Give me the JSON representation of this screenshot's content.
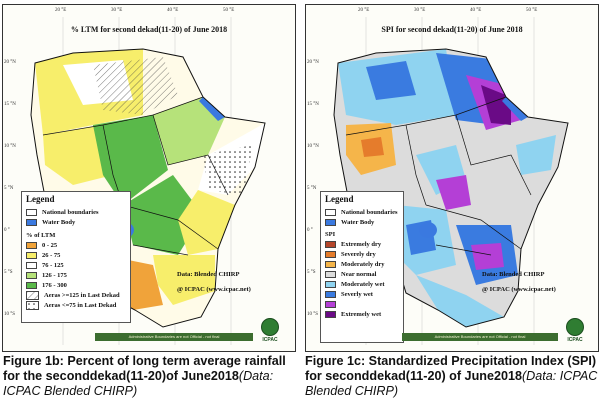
{
  "colors": {
    "accent_green": "#3c6d2f"
  },
  "lon_ticks": [
    "20 °E",
    "30 °E",
    "40 °E",
    "50 °E"
  ],
  "lat_ticks": [
    "20 °N",
    "15 °N",
    "10 °N",
    "5 °N",
    "0 °",
    "5 °S",
    "10 °S"
  ],
  "panel_b": {
    "title": "% LTM  for second dekad(11-20)  of June 2018",
    "legend_title": "Legend",
    "national_boundaries": "National boundaries",
    "water_body": "Water Body",
    "classes_title": "%  of  LTM",
    "classes": [
      {
        "label": "0 - 25",
        "color": "#f0a33a"
      },
      {
        "label": "26 - 75",
        "color": "#f7ee6b"
      },
      {
        "label": "76 - 125",
        "color": "#ffffff"
      },
      {
        "label": "126 - 175",
        "color": "#b6e27a"
      },
      {
        "label": "176 - 300",
        "color": "#5ab94a"
      }
    ],
    "hatch_1": "Aeras >=125 in Last Dekad",
    "hatch_2": "Aeras <=75 in Last Dekad",
    "data_credit": "Data: Blended CHIRP",
    "org_credit": "@ ICPAC (www.icpac.net)",
    "disclaimer": "Administrative Boundaries are not Official - not final",
    "logo_text": "ICPAC"
  },
  "panel_c": {
    "title": "SPI  for  second  dekad(11-20)  of June 2018",
    "legend_title": "Legend",
    "national_boundaries": "National boundaries",
    "water_body": "Water Body",
    "classes_title": "SPI",
    "classes": [
      {
        "label": "Extremely dry",
        "color": "#b5462b"
      },
      {
        "label": "Severely dry",
        "color": "#e57c2c"
      },
      {
        "label": "Moderately dry",
        "color": "#f5b54a"
      },
      {
        "label": "Near normal",
        "color": "#dcdcdc"
      },
      {
        "label": "Moderately wet",
        "color": "#8fd3f0"
      },
      {
        "label": "Severly wet",
        "color": "#3a7be0"
      },
      {
        "label": "",
        "color": "#b43fd6"
      },
      {
        "label": "Extremely wet",
        "color": "#6a0a86"
      }
    ],
    "data_credit": "Data: Blended CHIRP",
    "org_credit": "@ ICPAC (www.icpac.net)",
    "disclaimer": "Administrative Boundaries are not Official - not final",
    "logo_text": "ICPAC"
  },
  "captions": {
    "b_main": "Figure 1b: Percent of long term average rainfall for the seconddekad(11-20)of June2018",
    "b_src": "(Data: ICPAC Blended CHIRP)",
    "c_main": "Figure 1c: Standardized Precipitation Index (SPI) for seconddekad(11-20) of June2018",
    "c_src": "(Data: ICPAC Blended CHIRP)"
  }
}
